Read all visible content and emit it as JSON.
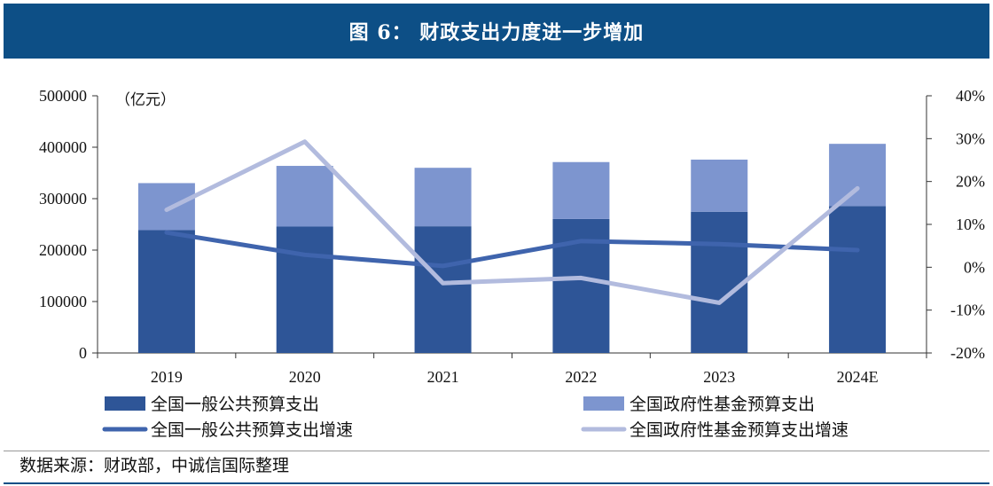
{
  "title": "图 6： 财政支出力度进一步增加",
  "source": "数据来源：财政部，中诚信国际整理",
  "chart_data": {
    "type": "bar",
    "unit_label": "（亿元）",
    "categories": [
      "2019",
      "2020",
      "2021",
      "2022",
      "2023",
      "2024E"
    ],
    "stacked": true,
    "series": [
      {
        "name": "全国一般公共预算支出",
        "values": [
          238858,
          245679,
          246322,
          260552,
          274574,
          285490
        ],
        "color": "#2e5597"
      },
      {
        "name": "全国政府性基金预算支出",
        "values": [
          91365,
          118058,
          113673,
          110583,
          101339,
          121099
        ],
        "color": "#7d95cf"
      }
    ],
    "line_series": [
      {
        "name": "全国一般公共预算支出增速",
        "values": [
          8.1,
          2.9,
          0.3,
          6.1,
          5.4,
          4.0
        ],
        "color": "#3f64ad"
      },
      {
        "name": "全国政府性基金预算支出增速",
        "values": [
          13.4,
          29.3,
          -3.7,
          -2.5,
          -8.3,
          18.4
        ],
        "color": "#b2bbde"
      }
    ],
    "left_axis": {
      "min": 0,
      "max": 500000,
      "ticks": [
        "0",
        "100000",
        "200000",
        "300000",
        "400000",
        "500000"
      ]
    },
    "right_axis": {
      "min": -20,
      "max": 40,
      "ticks": [
        "-20%",
        "-10%",
        "0%",
        "10%",
        "20%",
        "30%",
        "40%"
      ]
    },
    "legend_position": "bottom"
  }
}
